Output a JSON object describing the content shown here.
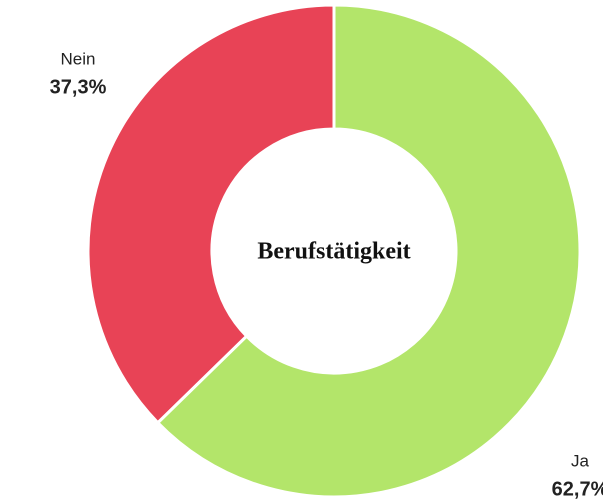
{
  "chart_data": {
    "type": "donut",
    "title": "Berufstätigkeit",
    "categories": [
      "Ja",
      "Nein"
    ],
    "values": [
      62.7,
      37.3
    ],
    "value_labels": [
      "62,7%",
      "37,3%"
    ],
    "colors": [
      "#b3e56a",
      "#e84356"
    ]
  }
}
